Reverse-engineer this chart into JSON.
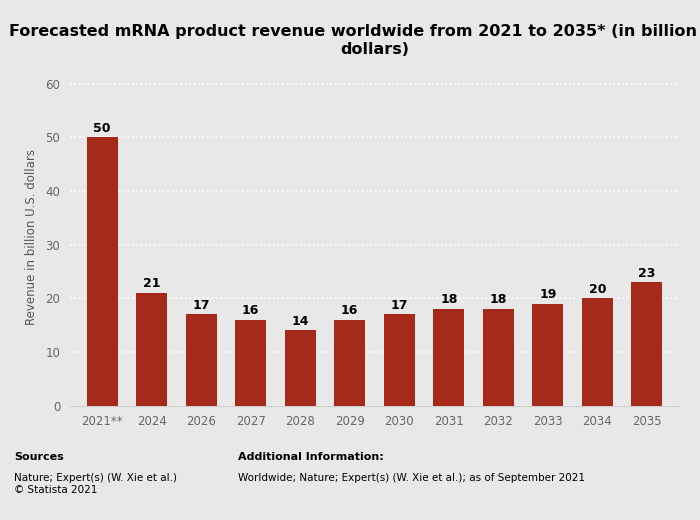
{
  "categories": [
    "2021**",
    "2024",
    "2026",
    "2027",
    "2028",
    "2029",
    "2030",
    "2031",
    "2032",
    "2033",
    "2034",
    "2035"
  ],
  "values": [
    50,
    21,
    17,
    16,
    14,
    16,
    17,
    18,
    18,
    19,
    20,
    23
  ],
  "bar_color": "#a52a1a",
  "title": "Forecasted mRNA product revenue worldwide from 2021 to 2035* (in billion U.S.\ndollars)",
  "ylabel": "Revenue in billion U.S. dollars",
  "ylim": [
    0,
    63
  ],
  "yticks": [
    0,
    10,
    20,
    30,
    40,
    50,
    60
  ],
  "title_fontsize": 11.5,
  "label_fontsize": 8.5,
  "tick_fontsize": 8.5,
  "value_fontsize": 9,
  "sources_bold": "Sources",
  "sources_text": "Nature; Expert(s) (W. Xie et al.)\n© Statista 2021",
  "additional_bold": "Additional Information:",
  "additional_text": "Worldwide; Nature; Expert(s) (W. Xie et al.); as of September 2021",
  "bg_color": "#e8e8e8",
  "plot_bg_color": "#e8e8e8",
  "grid_color": "#ffffff",
  "spine_color": "#cccccc"
}
